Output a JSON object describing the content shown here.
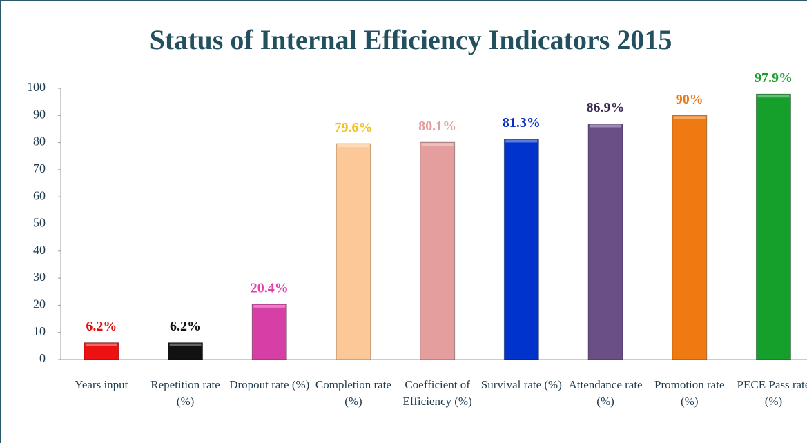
{
  "chart_data": {
    "type": "bar",
    "title": "Status of Internal Efficiency Indicators 2015",
    "categories": [
      "Years input",
      "Repetition rate (%)",
      "Dropout rate (%)",
      "Completion rate (%)",
      "Coefficient of Efficiency (%)",
      "Survival rate (%)",
      "Attendance rate (%)",
      "Promotion rate (%)",
      "PECE Pass rate (%)"
    ],
    "values": [
      6.2,
      6.2,
      20.4,
      79.6,
      80.1,
      81.3,
      86.9,
      90,
      97.9
    ],
    "value_labels": [
      "6.2%",
      "6.2%",
      "20.4%",
      "79.6%",
      "80.1%",
      "81.3%",
      "86.9%",
      "90%",
      "97.9%"
    ],
    "colors": [
      "#ee1111",
      "#111111",
      "#d63fa6",
      "#fcc897",
      "#e49e9e",
      "#0033cc",
      "#6a4f86",
      "#f07a12",
      "#14a02a"
    ],
    "value_label_colors": [
      "#e01010",
      "#111111",
      "#e040b0",
      "#f0c020",
      "#e49e9e",
      "#0a2fc0",
      "#3d2a55",
      "#e87818",
      "#14a02a"
    ],
    "ylim": [
      0,
      100
    ],
    "yticks": [
      0,
      10,
      20,
      30,
      40,
      50,
      60,
      70,
      80,
      90,
      100
    ],
    "grid": false
  }
}
